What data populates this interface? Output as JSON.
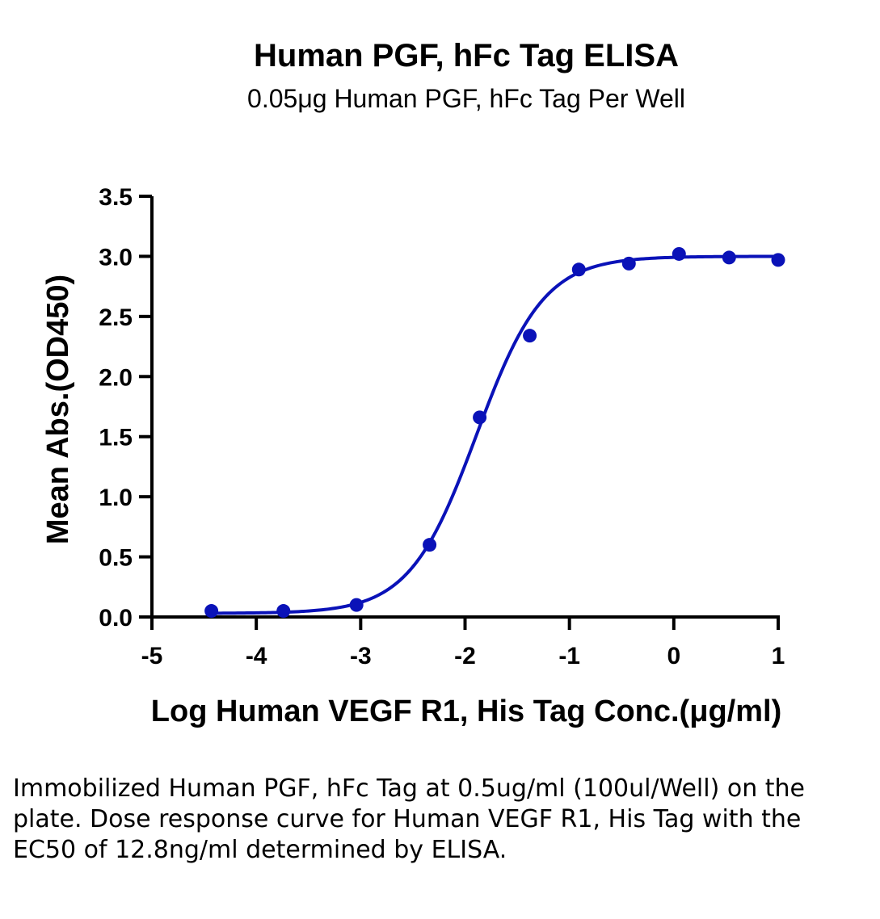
{
  "chart_data": {
    "type": "scatter",
    "title": "Human PGF, hFc Tag ELISA",
    "subtitle": "0.05μg Human PGF, hFc Tag Per Well",
    "xlabel": "Log Human VEGF R1, His Tag Conc.(μg/ml)",
    "ylabel": "Mean Abs.(OD450)",
    "xlim": [
      -5,
      1
    ],
    "ylim": [
      0,
      3.5
    ],
    "x_ticks": [
      -5,
      -4,
      -3,
      -2,
      -1,
      0,
      1
    ],
    "x_tick_labels": [
      "-5",
      "-4",
      "-3",
      "-2",
      "-1",
      "0",
      "1"
    ],
    "y_ticks": [
      0,
      0.5,
      1.0,
      1.5,
      2.0,
      2.5,
      3.0,
      3.5
    ],
    "y_tick_labels": [
      "0.0",
      "0.5",
      "1.0",
      "1.5",
      "2.0",
      "2.5",
      "3.0",
      "3.5"
    ],
    "series": [
      {
        "color": "#0a12b8",
        "x": [
          -4.43,
          -3.74,
          -3.04,
          -2.34,
          -1.86,
          -1.38,
          -0.91,
          -0.43,
          0.05,
          0.53,
          1.0
        ],
        "y": [
          0.05,
          0.05,
          0.1,
          0.6,
          1.66,
          2.34,
          2.89,
          2.94,
          3.02,
          2.99,
          2.97
        ],
        "fit": {
          "model": "4PL",
          "bottom": 0.03,
          "top": 3.0,
          "logEC50": -1.89,
          "hill": 1.35
        }
      }
    ],
    "grid": false,
    "legend": "none"
  },
  "caption": "Immobilized Human PGF, hFc Tag at 0.5ug/ml (100ul/Well) on the plate. Dose response curve for Human VEGF R1, His Tag with the EC50 of 12.8ng/ml determined by ELISA."
}
